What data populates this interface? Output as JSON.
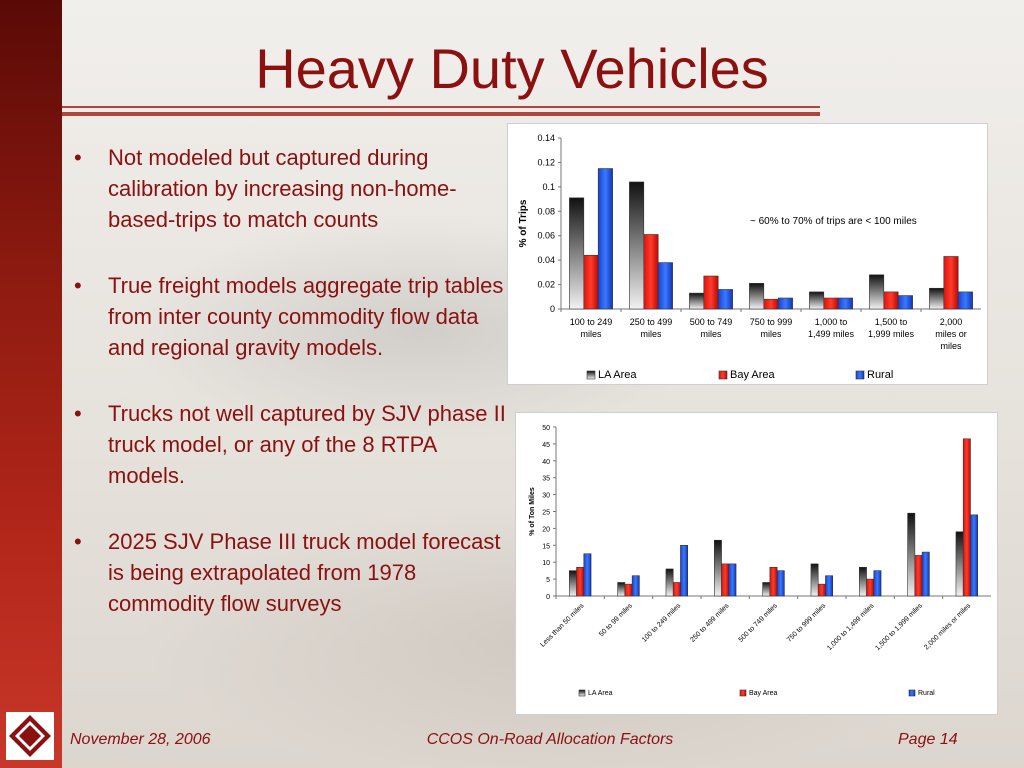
{
  "slide": {
    "title": "Heavy Duty Vehicles",
    "bullets": [
      "Not modeled but captured during calibration by increasing non-home-based-trips to match counts",
      "True freight models aggregate trip tables from inter county commodity flow data and regional gravity models.",
      "Trucks not well captured by SJV phase II truck model, or any of the 8 RTPA models.",
      "2025 SJV Phase III truck model forecast is being extrapolated from 1978 commodity flow surveys"
    ]
  },
  "footer": {
    "date": "November 28, 2006",
    "center": "CCOS On-Road Allocation Factors",
    "page": "Page 14"
  },
  "colors": {
    "accent": "#8b1010",
    "la": "#2b2b2b",
    "bay": "#e0140c",
    "rural": "#1f4fe0"
  },
  "chart_data": [
    {
      "type": "bar",
      "categories": [
        [
          "100 to 249",
          "miles"
        ],
        [
          "250 to 499",
          "miles"
        ],
        [
          "500 to 749",
          "miles"
        ],
        [
          "750 to 999",
          "miles"
        ],
        [
          "1,000 to",
          "1,499 miles"
        ],
        [
          "1,500 to",
          "1,999 miles"
        ],
        [
          "2,000",
          "miles or",
          "miles"
        ]
      ],
      "series": [
        {
          "name": "LA Area",
          "values": [
            0.091,
            0.104,
            0.013,
            0.021,
            0.014,
            0.028,
            0.017
          ]
        },
        {
          "name": "Bay Area",
          "values": [
            0.044,
            0.061,
            0.027,
            0.008,
            0.009,
            0.014,
            0.043
          ]
        },
        {
          "name": "Rural",
          "values": [
            0.115,
            0.038,
            0.016,
            0.009,
            0.009,
            0.011,
            0.014
          ]
        }
      ],
      "ylabel": "% of Trips",
      "ylim": [
        0,
        0.14
      ],
      "yticks": [
        "0",
        "0.02",
        "0.04",
        "0.06",
        "0.08",
        "0.1",
        "0.12",
        "0.14"
      ],
      "annotation": "~ 60% to 70% of trips are < 100 miles",
      "legend": "bottom"
    },
    {
      "type": "bar",
      "categories": [
        "Less than 50 miles",
        "50 to 99 miles",
        "100 to 249 miles",
        "250 to 499 miles",
        "500 to 749 miles",
        "750 to 999 miles",
        "1,000 to 1,499 miles",
        "1,500 to 1,999 miles",
        "2,000 miles or miles"
      ],
      "series": [
        {
          "name": "LA Area",
          "values": [
            7.5,
            4,
            8,
            16.5,
            4,
            9.5,
            8.5,
            24.5,
            19
          ]
        },
        {
          "name": "Bay Area",
          "values": [
            8.5,
            3.5,
            4,
            9.5,
            8.5,
            3.5,
            5,
            12,
            46.5
          ]
        },
        {
          "name": "Rural",
          "values": [
            12.5,
            6,
            15,
            9.5,
            7.5,
            6,
            7.5,
            13,
            24
          ]
        }
      ],
      "ylabel": "% of Ton Miles",
      "ylim": [
        0,
        50
      ],
      "yticks": [
        "0",
        "5",
        "10",
        "15",
        "20",
        "25",
        "30",
        "35",
        "40",
        "45",
        "50"
      ],
      "legend": "bottom"
    }
  ]
}
